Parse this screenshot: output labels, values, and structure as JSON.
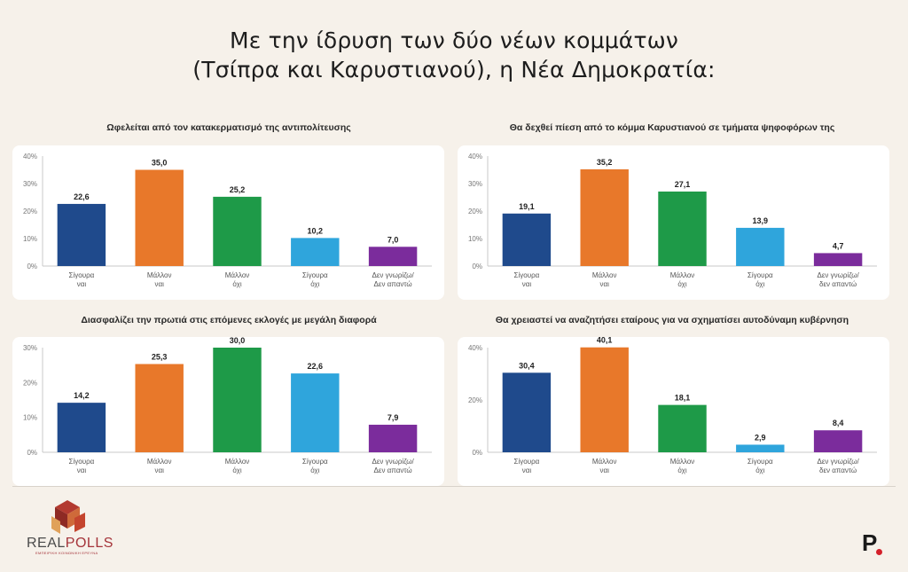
{
  "title": {
    "line1": "Με την ίδρυση των δύο νέων κομμάτων",
    "line2": "(Τσίπρα και Καρυστιανού), η Νέα Δημοκρατία:"
  },
  "colors": [
    "#1f4a8c",
    "#e8782a",
    "#1e9a48",
    "#2fa5dc",
    "#7b2c9c"
  ],
  "chart_data": [
    {
      "type": "bar",
      "title": "Ωφελείται από τον κατακερματισμό της αντιπολίτευσης",
      "categories": [
        [
          "Σίγουρα",
          "ναι"
        ],
        [
          "Μάλλον",
          "ναι"
        ],
        [
          "Μάλλον",
          "όχι"
        ],
        [
          "Σίγουρα",
          "όχι"
        ],
        [
          "Δεν γνωρίζω/",
          "Δεν απαντώ"
        ]
      ],
      "values": [
        22.6,
        35.0,
        25.2,
        10.2,
        7.0
      ],
      "value_labels": [
        "22,6",
        "35,0",
        "25,2",
        "10,2",
        "7,0"
      ],
      "ylim": [
        0,
        40
      ],
      "yticks": [
        "0%",
        "10%",
        "20%",
        "30%",
        "40%"
      ]
    },
    {
      "type": "bar",
      "title": "Θα δεχθεί πίεση από το κόμμα Καρυστιανού σε τμήματα ψηφοφόρων της",
      "categories": [
        [
          "Σίγουρα",
          "ναι"
        ],
        [
          "Μάλλον",
          "ναι"
        ],
        [
          "Μάλλον",
          "όχι"
        ],
        [
          "Σίγουρα",
          "όχι"
        ],
        [
          "Δεν γνωρίζω/",
          "δεν απαντώ"
        ]
      ],
      "values": [
        19.1,
        35.2,
        27.1,
        13.9,
        4.7
      ],
      "value_labels": [
        "19,1",
        "35,2",
        "27,1",
        "13,9",
        "4,7"
      ],
      "ylim": [
        0,
        40
      ],
      "yticks": [
        "0%",
        "10%",
        "20%",
        "30%",
        "40%"
      ]
    },
    {
      "type": "bar",
      "title": "Διασφαλίζει την πρωτιά στις επόμενες εκλογές με μεγάλη διαφορά",
      "categories": [
        [
          "Σίγουρα",
          "ναι"
        ],
        [
          "Μάλλον",
          "ναι"
        ],
        [
          "Μάλλον",
          "όχι"
        ],
        [
          "Σίγουρα",
          "όχι"
        ],
        [
          "Δεν γνωρίζω/",
          "Δεν απαντώ"
        ]
      ],
      "values": [
        14.2,
        25.3,
        30.0,
        22.6,
        7.9
      ],
      "value_labels": [
        "14,2",
        "25,3",
        "30,0",
        "22,6",
        "7,9"
      ],
      "ylim": [
        0,
        30
      ],
      "yticks": [
        "0%",
        "10%",
        "20%",
        "30%"
      ]
    },
    {
      "type": "bar",
      "title": "Θα χρειαστεί να αναζητήσει εταίρους για να σχηματίσει αυτοδύναμη κυβέρνηση",
      "categories": [
        [
          "Σίγουρα",
          "ναι"
        ],
        [
          "Μάλλον",
          "ναι"
        ],
        [
          "Μάλλον",
          "όχι"
        ],
        [
          "Σίγουρα",
          "όχι"
        ],
        [
          "Δεν γνωρίζω/",
          "δεν απαντώ"
        ]
      ],
      "values": [
        30.4,
        40.1,
        18.1,
        2.9,
        8.4
      ],
      "value_labels": [
        "30,4",
        "40,1",
        "18,1",
        "2,9",
        "8,4"
      ],
      "ylim": [
        0,
        40
      ],
      "yticks": [
        "0%",
        "20%",
        "40%"
      ]
    }
  ],
  "logo": {
    "brand_part1": "REAL",
    "brand_part2": "POLLS",
    "tagline": "ΕΜΠΕΙΡΙΚΗ ΚΟΙΝΩΝΙΚΗ ΕΡΕΥΝΑ",
    "right_mark": "P"
  }
}
